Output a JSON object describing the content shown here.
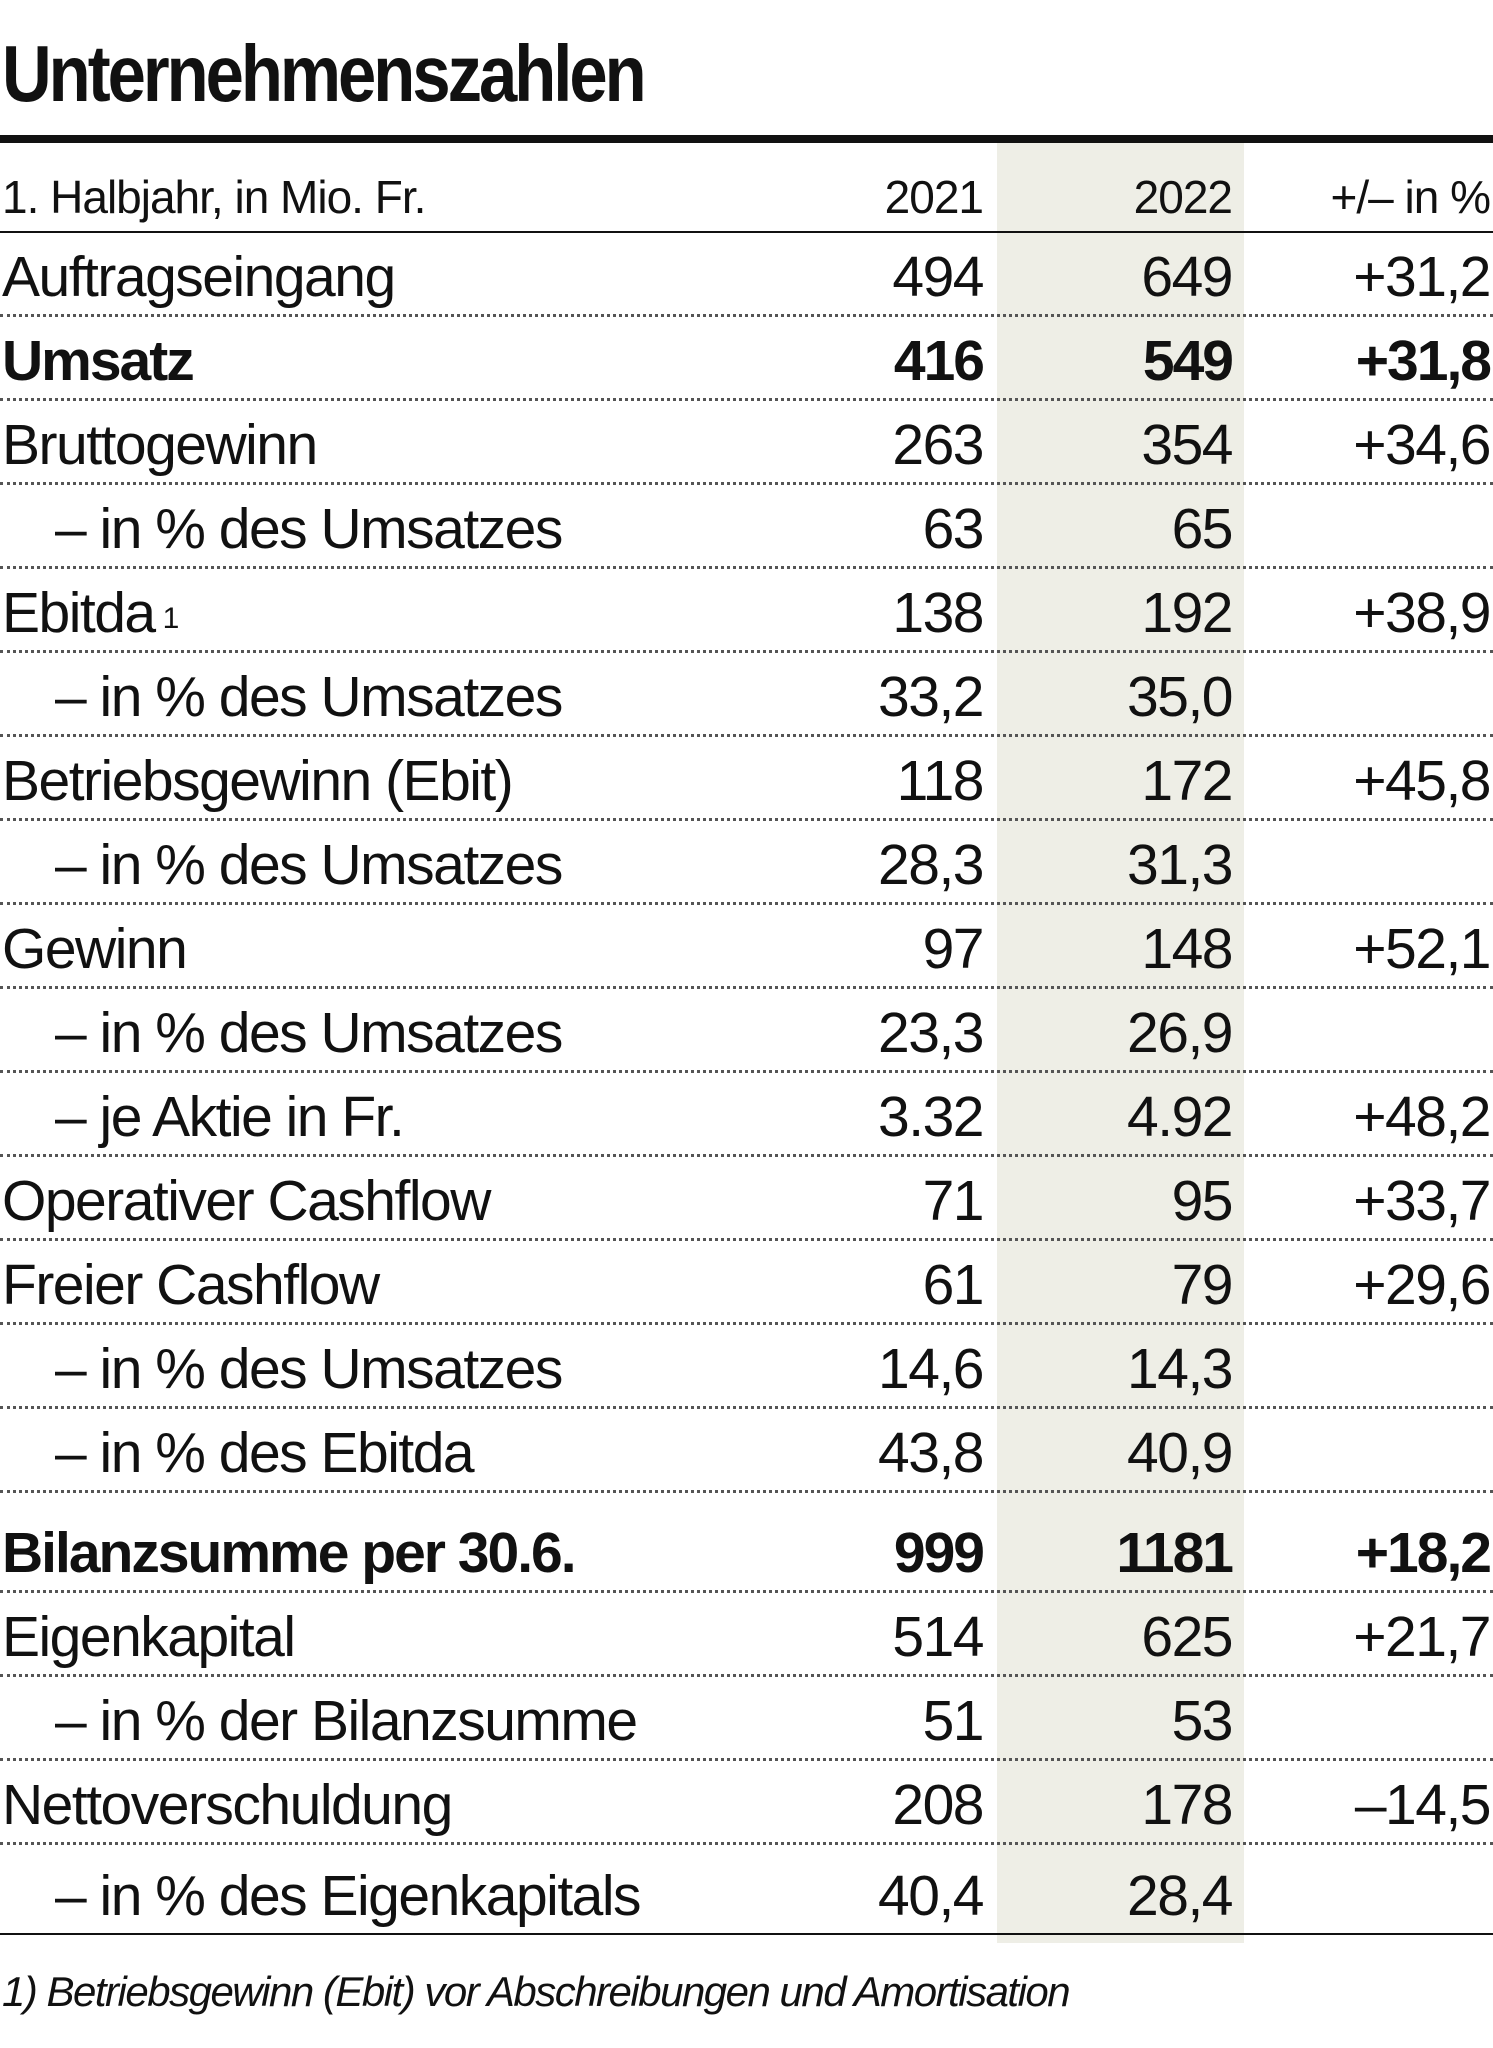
{
  "title": "Unternehmenszahlen",
  "header": {
    "label": "1. Halbjahr, in Mio. Fr.",
    "col_2021": "2021",
    "col_2022": "2022",
    "col_change": "+/–  in %"
  },
  "rows": [
    {
      "label": "Auftragseingang",
      "v2021": "494",
      "v2022": "649",
      "change": "+31,2"
    },
    {
      "label": "Umsatz",
      "v2021": "416",
      "v2022": "549",
      "change": "+31,8"
    },
    {
      "label": "Bruttogewinn",
      "v2021": "263",
      "v2022": "354",
      "change": "+34,6"
    },
    {
      "label": "– in % des Umsatzes",
      "v2021": "63",
      "v2022": "65",
      "change": ""
    },
    {
      "label": "Ebitda",
      "sup": "1",
      "v2021": "138",
      "v2022": "192",
      "change": "+38,9"
    },
    {
      "label": "– in % des Umsatzes",
      "v2021": "33,2",
      "v2022": "35,0",
      "change": ""
    },
    {
      "label": "Betriebsgewinn (Ebit)",
      "v2021": "118",
      "v2022": "172",
      "change": "+45,8"
    },
    {
      "label": "– in % des Umsatzes",
      "v2021": "28,3",
      "v2022": "31,3",
      "change": ""
    },
    {
      "label": "Gewinn",
      "v2021": "97",
      "v2022": "148",
      "change": "+52,1"
    },
    {
      "label": "– in % des Umsatzes",
      "v2021": "23,3",
      "v2022": "26,9",
      "change": ""
    },
    {
      "label": "– je Aktie in Fr.",
      "v2021": "3.32",
      "v2022": "4.92",
      "change": "+48,2"
    },
    {
      "label": "Operativer Cashflow",
      "v2021": "71",
      "v2022": "95",
      "change": "+33,7"
    },
    {
      "label": "Freier Cashflow",
      "v2021": "61",
      "v2022": "79",
      "change": "+29,6"
    },
    {
      "label": "– in % des Umsatzes",
      "v2021": "14,6",
      "v2022": "14,3",
      "change": ""
    },
    {
      "label": "– in % des Ebitda",
      "v2021": "43,8",
      "v2022": "40,9",
      "change": ""
    },
    {
      "label": "Bilanzsumme per 30.6.",
      "v2021": "999",
      "v2022": "1181",
      "change": "+18,2"
    },
    {
      "label": "Eigenkapital",
      "v2021": "514",
      "v2022": "625",
      "change": "+21,7"
    },
    {
      "label": "– in % der Bilanzsumme",
      "v2021": "51",
      "v2022": "53",
      "change": ""
    },
    {
      "label": "Nettoverschuldung",
      "v2021": "208",
      "v2022": "178",
      "change": "–14,5"
    },
    {
      "label": "– in % des Eigenkapitals",
      "v2021": "40,4",
      "v2022": "28,4",
      "change": ""
    }
  ],
  "footnote": "1) Betriebsgewinn (Ebit) vor Abschreibungen und Amortisation"
}
